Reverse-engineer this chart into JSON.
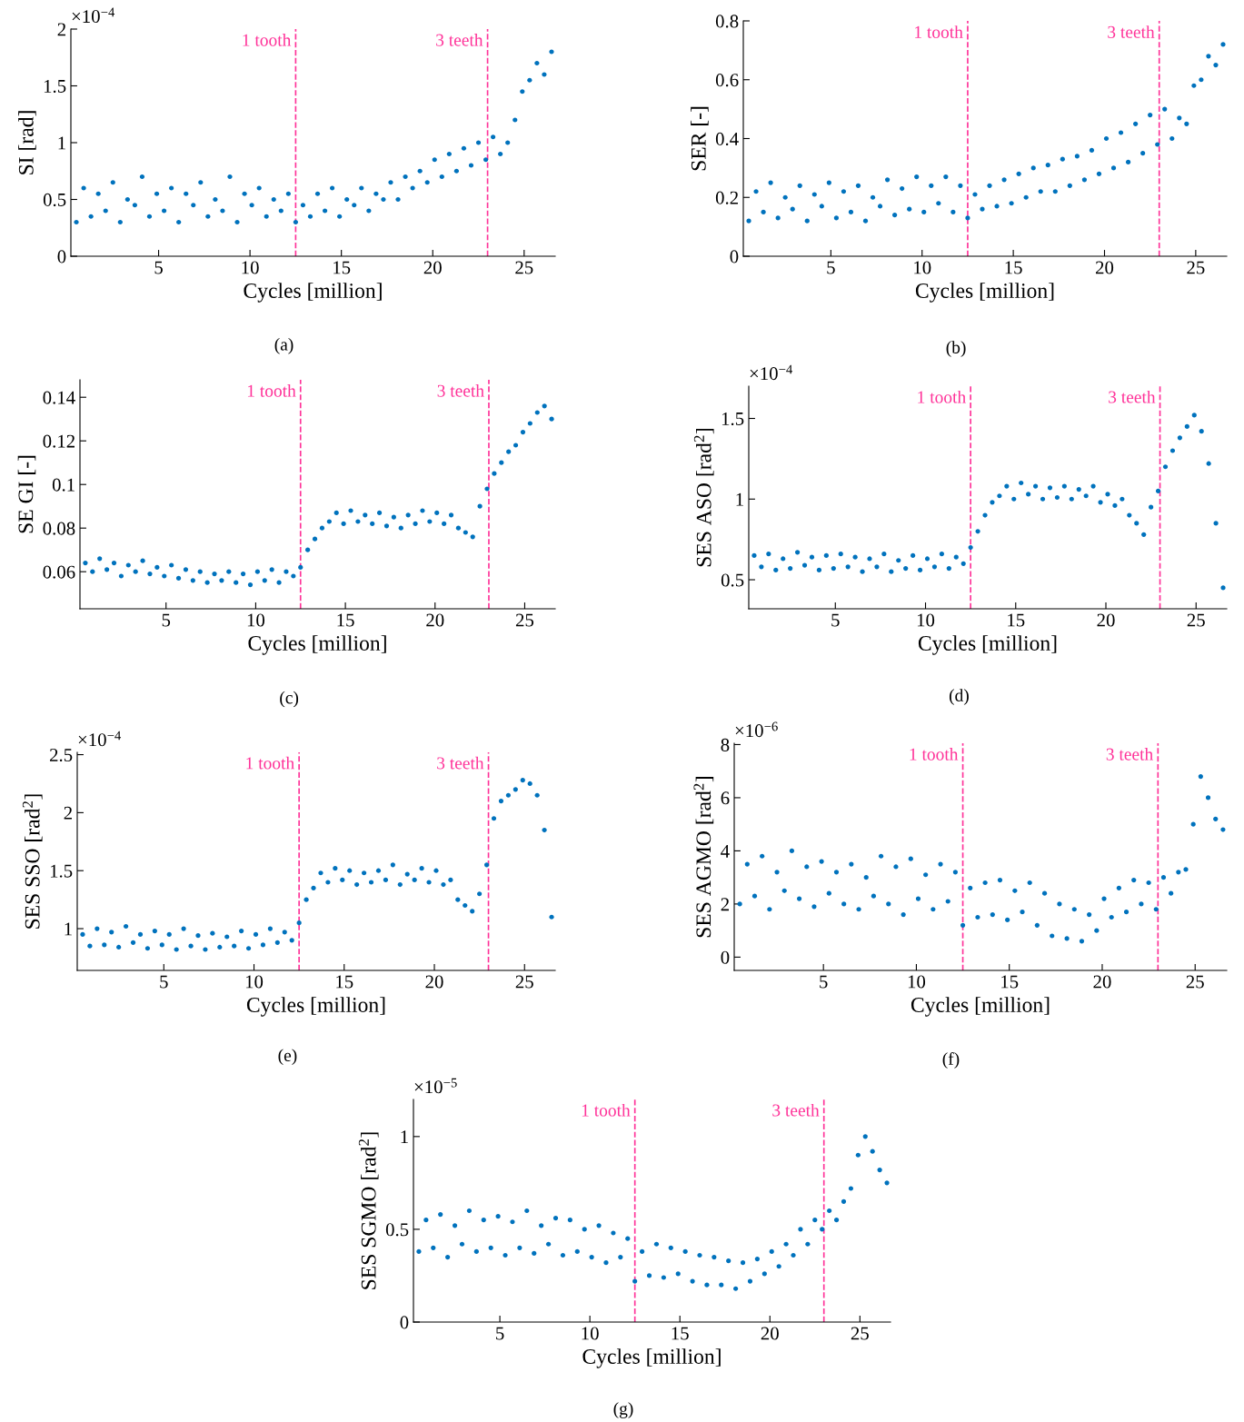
{
  "chart_data": [
    {
      "type": "scatter",
      "xlabel": "Cycles [million]",
      "ylabel": "SI [rad]",
      "color": "#0072bd",
      "marker": "circle",
      "xlim": [
        0.2,
        26.7
      ],
      "xticks": [
        5,
        10,
        15,
        20,
        25
      ],
      "ylim": [
        0,
        2
      ],
      "yticks": [
        0,
        0.5,
        1,
        1.5,
        2
      ],
      "x": [
        0.5,
        0.9,
        1.3,
        1.7,
        2.1,
        2.5,
        2.9,
        3.3,
        3.7,
        4.1,
        4.5,
        4.9,
        5.3,
        5.7,
        6.1,
        6.5,
        6.9,
        7.3,
        7.7,
        8.1,
        8.5,
        8.9,
        9.3,
        9.7,
        10.1,
        10.5,
        10.9,
        11.3,
        11.7,
        12.1,
        12.5,
        12.9,
        13.3,
        13.7,
        14.1,
        14.5,
        14.9,
        15.3,
        15.7,
        16.1,
        16.5,
        16.9,
        17.3,
        17.7,
        18.1,
        18.5,
        18.9,
        19.3,
        19.7,
        20.1,
        20.5,
        20.9,
        21.3,
        21.7,
        22.1,
        22.5,
        22.9,
        23.3,
        23.7,
        24.1,
        24.5,
        24.9,
        25.3,
        25.7,
        26.1,
        26.5
      ],
      "values": [
        0.3,
        0.6,
        0.35,
        0.55,
        0.4,
        0.65,
        0.3,
        0.5,
        0.45,
        0.7,
        0.35,
        0.55,
        0.4,
        0.6,
        0.3,
        0.55,
        0.45,
        0.65,
        0.35,
        0.5,
        0.4,
        0.7,
        0.3,
        0.55,
        0.45,
        0.6,
        0.35,
        0.5,
        0.4,
        0.55,
        0.3,
        0.45,
        0.35,
        0.55,
        0.4,
        0.6,
        0.35,
        0.5,
        0.45,
        0.6,
        0.4,
        0.55,
        0.5,
        0.65,
        0.5,
        0.7,
        0.6,
        0.75,
        0.65,
        0.85,
        0.7,
        0.9,
        0.75,
        0.95,
        0.8,
        1.0,
        0.85,
        1.05,
        0.9,
        1.0,
        1.2,
        1.45,
        1.55,
        1.7,
        1.6,
        1.8
      ],
      "ref_lines": [
        {
          "axis": "x",
          "value": 12.5,
          "label": "1 tooth",
          "color": "#ff3399",
          "line_style": "dashed"
        },
        {
          "axis": "x",
          "value": 23,
          "label": "3 teeth",
          "color": "#ff3399",
          "line_style": "dashed"
        }
      ],
      "annotations": [
        "×10$^{−4}$",
        "(a)"
      ]
    },
    {
      "type": "scatter",
      "xlabel": "Cycles [million]",
      "ylabel": "SER [-]",
      "color": "#0072bd",
      "marker": "circle",
      "xlim": [
        0.2,
        26.7
      ],
      "xticks": [
        5,
        10,
        15,
        20,
        25
      ],
      "ylim": [
        0,
        0.8
      ],
      "yticks": [
        0,
        0.2,
        0.4,
        0.6,
        0.8
      ],
      "x": [
        0.5,
        0.9,
        1.3,
        1.7,
        2.1,
        2.5,
        2.9,
        3.3,
        3.7,
        4.1,
        4.5,
        4.9,
        5.3,
        5.7,
        6.1,
        6.5,
        6.9,
        7.3,
        7.7,
        8.1,
        8.5,
        8.9,
        9.3,
        9.7,
        10.1,
        10.5,
        10.9,
        11.3,
        11.7,
        12.1,
        12.5,
        12.9,
        13.3,
        13.7,
        14.1,
        14.5,
        14.9,
        15.3,
        15.7,
        16.1,
        16.5,
        16.9,
        17.3,
        17.7,
        18.1,
        18.5,
        18.9,
        19.3,
        19.7,
        20.1,
        20.5,
        20.9,
        21.3,
        21.7,
        22.1,
        22.5,
        22.9,
        23.3,
        23.7,
        24.1,
        24.5,
        24.9,
        25.3,
        25.7,
        26.1,
        26.5
      ],
      "values": [
        0.12,
        0.22,
        0.15,
        0.25,
        0.13,
        0.2,
        0.16,
        0.24,
        0.12,
        0.21,
        0.17,
        0.25,
        0.13,
        0.22,
        0.15,
        0.24,
        0.12,
        0.2,
        0.17,
        0.26,
        0.14,
        0.23,
        0.16,
        0.27,
        0.15,
        0.24,
        0.18,
        0.27,
        0.15,
        0.24,
        0.13,
        0.21,
        0.16,
        0.24,
        0.17,
        0.26,
        0.18,
        0.28,
        0.2,
        0.3,
        0.22,
        0.31,
        0.22,
        0.33,
        0.24,
        0.34,
        0.26,
        0.36,
        0.28,
        0.4,
        0.3,
        0.42,
        0.32,
        0.45,
        0.35,
        0.48,
        0.38,
        0.5,
        0.4,
        0.47,
        0.45,
        0.58,
        0.6,
        0.68,
        0.65,
        0.72
      ],
      "ref_lines": [
        {
          "axis": "x",
          "value": 12.5,
          "label": "1 tooth",
          "color": "#ff3399",
          "line_style": "dashed"
        },
        {
          "axis": "x",
          "value": 23,
          "label": "3 teeth",
          "color": "#ff3399",
          "line_style": "dashed"
        }
      ],
      "annotations": [
        "(b)"
      ]
    },
    {
      "type": "scatter",
      "xlabel": "Cycles [million]",
      "ylabel": "SE GI [-]",
      "color": "#0072bd",
      "marker": "circle",
      "xlim": [
        0.2,
        26.7
      ],
      "xticks": [
        5,
        10,
        15,
        20,
        25
      ],
      "ylim": [
        0.043,
        0.148
      ],
      "yticks": [
        0.06,
        0.08,
        0.1,
        0.12,
        0.14
      ],
      "x": [
        0.5,
        0.9,
        1.3,
        1.7,
        2.1,
        2.5,
        2.9,
        3.3,
        3.7,
        4.1,
        4.5,
        4.9,
        5.3,
        5.7,
        6.1,
        6.5,
        6.9,
        7.3,
        7.7,
        8.1,
        8.5,
        8.9,
        9.3,
        9.7,
        10.1,
        10.5,
        10.9,
        11.3,
        11.7,
        12.1,
        12.5,
        12.9,
        13.3,
        13.7,
        14.1,
        14.5,
        14.9,
        15.3,
        15.7,
        16.1,
        16.5,
        16.9,
        17.3,
        17.7,
        18.1,
        18.5,
        18.9,
        19.3,
        19.7,
        20.1,
        20.5,
        20.9,
        21.3,
        21.7,
        22.1,
        22.5,
        22.9,
        23.3,
        23.7,
        24.1,
        24.5,
        24.9,
        25.3,
        25.7,
        26.1,
        26.5
      ],
      "values": [
        0.064,
        0.06,
        0.066,
        0.061,
        0.064,
        0.058,
        0.063,
        0.06,
        0.065,
        0.059,
        0.062,
        0.058,
        0.063,
        0.057,
        0.061,
        0.056,
        0.06,
        0.055,
        0.059,
        0.056,
        0.06,
        0.055,
        0.059,
        0.054,
        0.06,
        0.056,
        0.061,
        0.055,
        0.06,
        0.058,
        0.062,
        0.07,
        0.075,
        0.08,
        0.083,
        0.087,
        0.082,
        0.088,
        0.083,
        0.086,
        0.082,
        0.087,
        0.081,
        0.085,
        0.08,
        0.086,
        0.082,
        0.088,
        0.083,
        0.087,
        0.082,
        0.086,
        0.08,
        0.078,
        0.076,
        0.09,
        0.098,
        0.105,
        0.11,
        0.115,
        0.118,
        0.124,
        0.128,
        0.133,
        0.136,
        0.13
      ],
      "ref_lines": [
        {
          "axis": "x",
          "value": 12.5,
          "label": "1 tooth",
          "color": "#ff3399",
          "line_style": "dashed"
        },
        {
          "axis": "x",
          "value": 23,
          "label": "3 teeth",
          "color": "#ff3399",
          "line_style": "dashed"
        }
      ],
      "annotations": [
        "(c)"
      ]
    },
    {
      "type": "scatter",
      "xlabel": "Cycles [million]",
      "ylabel": "SES ASO [rad$^{2}$]",
      "color": "#0072bd",
      "marker": "circle",
      "xlim": [
        0.2,
        26.7
      ],
      "xticks": [
        5,
        10,
        15,
        20,
        25
      ],
      "ylim": [
        0.32,
        1.7
      ],
      "yticks": [
        0.5,
        1,
        1.5
      ],
      "x": [
        0.5,
        0.9,
        1.3,
        1.7,
        2.1,
        2.5,
        2.9,
        3.3,
        3.7,
        4.1,
        4.5,
        4.9,
        5.3,
        5.7,
        6.1,
        6.5,
        6.9,
        7.3,
        7.7,
        8.1,
        8.5,
        8.9,
        9.3,
        9.7,
        10.1,
        10.5,
        10.9,
        11.3,
        11.7,
        12.1,
        12.5,
        12.9,
        13.3,
        13.7,
        14.1,
        14.5,
        14.9,
        15.3,
        15.7,
        16.1,
        16.5,
        16.9,
        17.3,
        17.7,
        18.1,
        18.5,
        18.9,
        19.3,
        19.7,
        20.1,
        20.5,
        20.9,
        21.3,
        21.7,
        22.1,
        22.5,
        22.9,
        23.3,
        23.7,
        24.1,
        24.5,
        24.9,
        25.3,
        25.7,
        26.1,
        26.5
      ],
      "values": [
        0.65,
        0.58,
        0.66,
        0.56,
        0.63,
        0.57,
        0.67,
        0.59,
        0.64,
        0.56,
        0.65,
        0.57,
        0.66,
        0.58,
        0.64,
        0.55,
        0.63,
        0.58,
        0.66,
        0.55,
        0.62,
        0.57,
        0.65,
        0.56,
        0.63,
        0.58,
        0.66,
        0.57,
        0.64,
        0.6,
        0.7,
        0.8,
        0.9,
        0.98,
        1.02,
        1.08,
        1.0,
        1.1,
        1.03,
        1.08,
        1.0,
        1.07,
        1.01,
        1.08,
        1.0,
        1.06,
        1.02,
        1.08,
        0.98,
        1.03,
        0.96,
        1.0,
        0.9,
        0.85,
        0.78,
        0.95,
        1.05,
        1.2,
        1.3,
        1.38,
        1.45,
        1.52,
        1.42,
        1.22,
        0.85,
        0.45
      ],
      "ref_lines": [
        {
          "axis": "x",
          "value": 12.5,
          "label": "1 tooth",
          "color": "#ff3399",
          "line_style": "dashed"
        },
        {
          "axis": "x",
          "value": 23,
          "label": "3 teeth",
          "color": "#ff3399",
          "line_style": "dashed"
        }
      ],
      "annotations": [
        "×10$^{−4}$",
        "(d)"
      ]
    },
    {
      "type": "scatter",
      "xlabel": "Cycles [million]",
      "ylabel": "SES SSO [rad$^{2}$]",
      "color": "#0072bd",
      "marker": "circle",
      "xlim": [
        0.2,
        26.7
      ],
      "xticks": [
        5,
        10,
        15,
        20,
        25
      ],
      "ylim": [
        0.64,
        2.52
      ],
      "yticks": [
        1,
        1.5,
        2,
        2.5
      ],
      "x": [
        0.5,
        0.9,
        1.3,
        1.7,
        2.1,
        2.5,
        2.9,
        3.3,
        3.7,
        4.1,
        4.5,
        4.9,
        5.3,
        5.7,
        6.1,
        6.5,
        6.9,
        7.3,
        7.7,
        8.1,
        8.5,
        8.9,
        9.3,
        9.7,
        10.1,
        10.5,
        10.9,
        11.3,
        11.7,
        12.1,
        12.5,
        12.9,
        13.3,
        13.7,
        14.1,
        14.5,
        14.9,
        15.3,
        15.7,
        16.1,
        16.5,
        16.9,
        17.3,
        17.7,
        18.1,
        18.5,
        18.9,
        19.3,
        19.7,
        20.1,
        20.5,
        20.9,
        21.3,
        21.7,
        22.1,
        22.5,
        22.9,
        23.3,
        23.7,
        24.1,
        24.5,
        24.9,
        25.3,
        25.7,
        26.1,
        26.5
      ],
      "values": [
        0.95,
        0.85,
        1.0,
        0.86,
        0.97,
        0.84,
        1.02,
        0.88,
        0.95,
        0.83,
        0.98,
        0.86,
        0.95,
        0.82,
        1.0,
        0.85,
        0.94,
        0.82,
        0.96,
        0.84,
        0.93,
        0.85,
        0.98,
        0.83,
        0.95,
        0.86,
        1.0,
        0.88,
        0.97,
        0.9,
        1.05,
        1.25,
        1.35,
        1.48,
        1.4,
        1.52,
        1.42,
        1.5,
        1.38,
        1.48,
        1.4,
        1.5,
        1.42,
        1.55,
        1.38,
        1.47,
        1.42,
        1.52,
        1.4,
        1.5,
        1.38,
        1.42,
        1.25,
        1.2,
        1.15,
        1.3,
        1.55,
        1.95,
        2.1,
        2.15,
        2.2,
        2.28,
        2.25,
        2.15,
        1.85,
        1.1
      ],
      "ref_lines": [
        {
          "axis": "x",
          "value": 12.5,
          "label": "1 tooth",
          "color": "#ff3399",
          "line_style": "dashed"
        },
        {
          "axis": "x",
          "value": 23,
          "label": "3 teeth",
          "color": "#ff3399",
          "line_style": "dashed"
        }
      ],
      "annotations": [
        "×10$^{−4}$",
        "(e)"
      ]
    },
    {
      "type": "scatter",
      "xlabel": "Cycles [million]",
      "ylabel": "SES AGMO [rad$^{2}$]",
      "color": "#0072bd",
      "marker": "circle",
      "xlim": [
        0.2,
        26.7
      ],
      "xticks": [
        5,
        10,
        15,
        20,
        25
      ],
      "ylim": [
        -0.5,
        8.05
      ],
      "yticks": [
        0,
        2,
        4,
        6,
        8
      ],
      "x": [
        0.5,
        0.9,
        1.3,
        1.7,
        2.1,
        2.5,
        2.9,
        3.3,
        3.7,
        4.1,
        4.5,
        4.9,
        5.3,
        5.7,
        6.1,
        6.5,
        6.9,
        7.3,
        7.7,
        8.1,
        8.5,
        8.9,
        9.3,
        9.7,
        10.1,
        10.5,
        10.9,
        11.3,
        11.7,
        12.1,
        12.5,
        12.9,
        13.3,
        13.7,
        14.1,
        14.5,
        14.9,
        15.3,
        15.7,
        16.1,
        16.5,
        16.9,
        17.3,
        17.7,
        18.1,
        18.5,
        18.9,
        19.3,
        19.7,
        20.1,
        20.5,
        20.9,
        21.3,
        21.7,
        22.1,
        22.5,
        22.9,
        23.3,
        23.7,
        24.1,
        24.5,
        24.9,
        25.3,
        25.7,
        26.1,
        26.5
      ],
      "values": [
        2.0,
        3.5,
        2.3,
        3.8,
        1.8,
        3.2,
        2.5,
        4.0,
        2.2,
        3.4,
        1.9,
        3.6,
        2.4,
        3.2,
        2.0,
        3.5,
        1.8,
        3.0,
        2.3,
        3.8,
        2.0,
        3.4,
        1.6,
        3.7,
        2.2,
        3.1,
        1.8,
        3.5,
        2.1,
        3.2,
        1.2,
        2.6,
        1.5,
        2.8,
        1.6,
        2.9,
        1.4,
        2.5,
        1.7,
        2.8,
        1.2,
        2.4,
        0.8,
        2.0,
        0.7,
        1.8,
        0.6,
        1.6,
        1.0,
        2.2,
        1.5,
        2.6,
        1.7,
        2.9,
        2.0,
        2.8,
        1.8,
        3.0,
        2.4,
        3.2,
        3.3,
        5.0,
        6.8,
        6.0,
        5.2,
        4.8
      ],
      "ref_lines": [
        {
          "axis": "x",
          "value": 12.5,
          "label": "1 tooth",
          "color": "#ff3399",
          "line_style": "dashed"
        },
        {
          "axis": "x",
          "value": 23,
          "label": "3 teeth",
          "color": "#ff3399",
          "line_style": "dashed"
        }
      ],
      "annotations": [
        "×10$^{−6}$",
        "(f)"
      ]
    },
    {
      "type": "scatter",
      "xlabel": "Cycles [million]",
      "ylabel": "SES SGMO [rad$^{2}$]",
      "color": "#0072bd",
      "marker": "circle",
      "xlim": [
        0.2,
        26.7
      ],
      "xticks": [
        5,
        10,
        15,
        20,
        25
      ],
      "ylim": [
        0,
        1.2
      ],
      "yticks": [
        0,
        0.5,
        1
      ],
      "x": [
        0.5,
        0.9,
        1.3,
        1.7,
        2.1,
        2.5,
        2.9,
        3.3,
        3.7,
        4.1,
        4.5,
        4.9,
        5.3,
        5.7,
        6.1,
        6.5,
        6.9,
        7.3,
        7.7,
        8.1,
        8.5,
        8.9,
        9.3,
        9.7,
        10.1,
        10.5,
        10.9,
        11.3,
        11.7,
        12.1,
        12.5,
        12.9,
        13.3,
        13.7,
        14.1,
        14.5,
        14.9,
        15.3,
        15.7,
        16.1,
        16.5,
        16.9,
        17.3,
        17.7,
        18.1,
        18.5,
        18.9,
        19.3,
        19.7,
        20.1,
        20.5,
        20.9,
        21.3,
        21.7,
        22.1,
        22.5,
        22.9,
        23.3,
        23.7,
        24.1,
        24.5,
        24.9,
        25.3,
        25.7,
        26.1,
        26.5
      ],
      "values": [
        0.38,
        0.55,
        0.4,
        0.58,
        0.35,
        0.52,
        0.42,
        0.6,
        0.38,
        0.55,
        0.4,
        0.57,
        0.36,
        0.54,
        0.4,
        0.6,
        0.37,
        0.52,
        0.42,
        0.56,
        0.36,
        0.55,
        0.38,
        0.5,
        0.35,
        0.52,
        0.32,
        0.48,
        0.35,
        0.45,
        0.22,
        0.38,
        0.25,
        0.42,
        0.24,
        0.4,
        0.26,
        0.38,
        0.22,
        0.36,
        0.2,
        0.35,
        0.2,
        0.33,
        0.18,
        0.32,
        0.22,
        0.34,
        0.26,
        0.38,
        0.3,
        0.42,
        0.36,
        0.5,
        0.42,
        0.55,
        0.5,
        0.6,
        0.55,
        0.65,
        0.72,
        0.9,
        1.0,
        0.92,
        0.82,
        0.75
      ],
      "ref_lines": [
        {
          "axis": "x",
          "value": 12.5,
          "label": "1 tooth",
          "color": "#ff3399",
          "line_style": "dashed"
        },
        {
          "axis": "x",
          "value": 23,
          "label": "3 teeth",
          "color": "#ff3399",
          "line_style": "dashed"
        }
      ],
      "annotations": [
        "×10$^{−5}$",
        "(g)"
      ]
    }
  ]
}
